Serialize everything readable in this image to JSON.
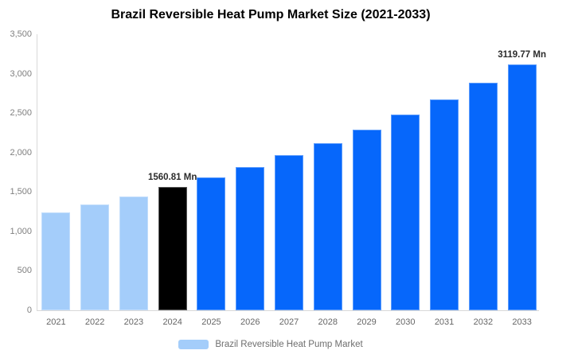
{
  "title": "Brazil Reversible Heat Pump Market Size (2021-2033)",
  "legend": {
    "label": "Brazil Reversible Heat Pump Market",
    "swatch_color": "#A4CDFA"
  },
  "colors": {
    "past_bar": "#A4CDFA",
    "highlight_bar": "#000000",
    "forecast_bar": "#0667FB",
    "axis_line": "#d9d9d9",
    "ytick_text": "#7f7f7f",
    "xtick_text": "#666666",
    "data_label_text": "#2b2b2b",
    "title_text": "#000000",
    "background": "#ffffff"
  },
  "chart_data": {
    "type": "bar",
    "title": "Brazil Reversible Heat Pump Market Size (2021-2033)",
    "xlabel": "",
    "ylabel": "",
    "categories": [
      "2021",
      "2022",
      "2023",
      "2024",
      "2025",
      "2026",
      "2027",
      "2028",
      "2029",
      "2030",
      "2031",
      "2032",
      "2033"
    ],
    "values": [
      1239,
      1338,
      1445,
      1560.81,
      1686,
      1820,
      1966,
      2123,
      2293,
      2477,
      2675,
      2889,
      3119.77
    ],
    "bar_colors": [
      "#A4CDFA",
      "#A4CDFA",
      "#A4CDFA",
      "#000000",
      "#0667FB",
      "#0667FB",
      "#0667FB",
      "#0667FB",
      "#0667FB",
      "#0667FB",
      "#0667FB",
      "#0667FB",
      "#0667FB"
    ],
    "ylim": [
      0,
      3500
    ],
    "yticks": [
      {
        "value": 0,
        "label": "0"
      },
      {
        "value": 500,
        "label": "500"
      },
      {
        "value": 1000,
        "label": "1,000"
      },
      {
        "value": 1500,
        "label": "1,500"
      },
      {
        "value": 2000,
        "label": "2,000"
      },
      {
        "value": 2500,
        "label": "2,500"
      },
      {
        "value": 3000,
        "label": "3,000"
      },
      {
        "value": 3500,
        "label": "3,500"
      }
    ],
    "grid": false,
    "legend_position": "bottom",
    "annotations": [
      {
        "index": 3,
        "text": "1560.81 Mn"
      },
      {
        "index": 12,
        "text": "3119.77 Mn"
      }
    ]
  }
}
